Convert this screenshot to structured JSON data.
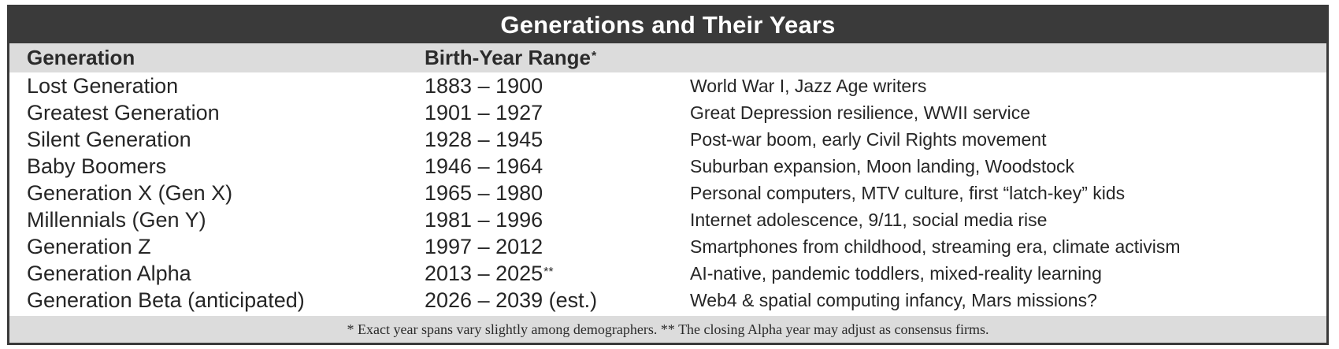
{
  "title": "Generations and Their Years",
  "headers": {
    "generation": "Generation",
    "birth_year_range": "Birth-Year Range",
    "birth_year_mark": "*",
    "events": ""
  },
  "rows": [
    {
      "generation": "Lost Generation",
      "years": "1883 – 1900",
      "mark": "",
      "events": "World War I, Jazz Age writers"
    },
    {
      "generation": "Greatest Generation",
      "years": "1901 – 1927",
      "mark": "",
      "events": "Great Depression resilience, WWII service"
    },
    {
      "generation": "Silent Generation",
      "years": "1928 – 1945",
      "mark": "",
      "events": "Post-war boom, early Civil Rights movement"
    },
    {
      "generation": "Baby Boomers",
      "years": "1946 – 1964",
      "mark": "",
      "events": "Suburban expansion, Moon landing, Woodstock"
    },
    {
      "generation": "Generation X (Gen X)",
      "years": "1965 – 1980",
      "mark": "",
      "events": "Personal computers, MTV culture, first “latch-key” kids"
    },
    {
      "generation": "Millennials (Gen Y)",
      "years": "1981 – 1996",
      "mark": "",
      "events": "Internet adolescence, 9/11, social media rise"
    },
    {
      "generation": "Generation Z",
      "years": "1997 – 2012",
      "mark": "",
      "events": "Smartphones from childhood, streaming era, climate activism"
    },
    {
      "generation": "Generation Alpha",
      "years": "2013 – 2025",
      "mark": "**",
      "events": "AI-native, pandemic toddlers, mixed-reality learning"
    },
    {
      "generation": "Generation Beta (anticipated)",
      "years": "2026 – 2039 (est.)",
      "mark": "",
      "events": "Web4 & spatial computing infancy, Mars missions?"
    }
  ],
  "footnote": "* Exact year spans vary slightly among demographers. ** The closing Alpha year may adjust as consensus firms.",
  "colors": {
    "title_bar": "#3a3a3a",
    "header_bg": "#dcdcdc",
    "text": "#262626"
  }
}
